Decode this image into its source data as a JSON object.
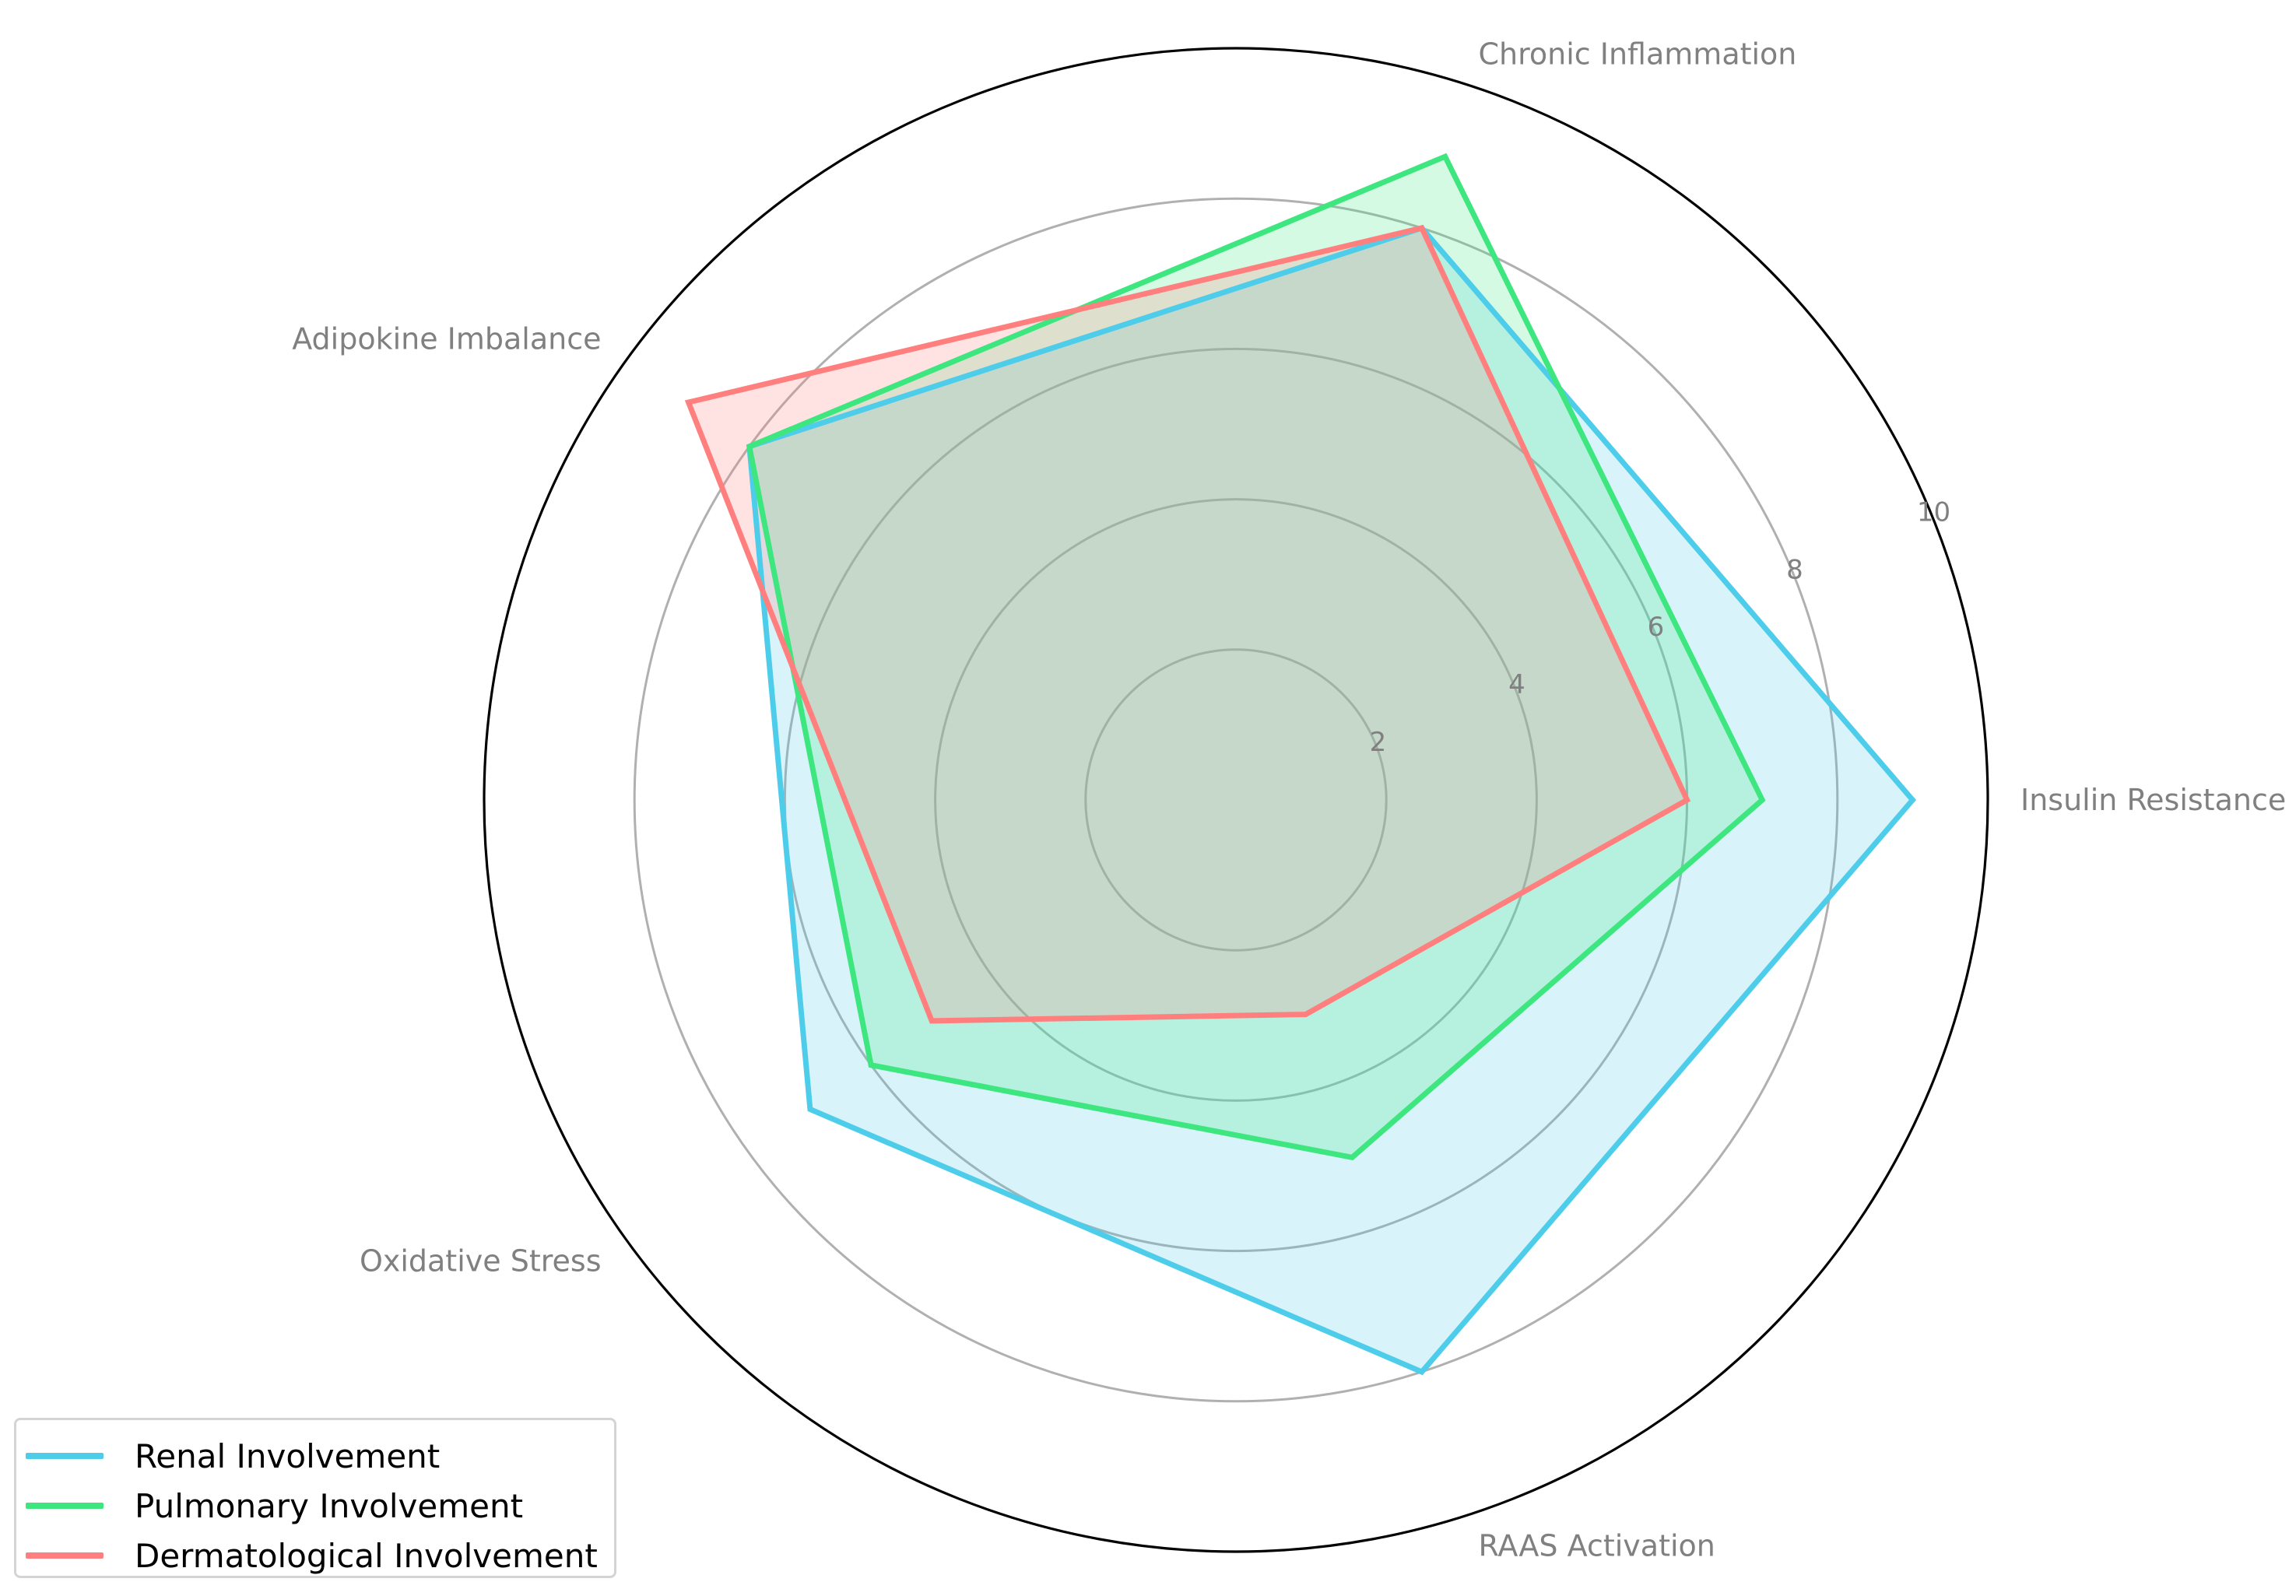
{
  "chart_data": {
    "type": "radar",
    "axes": [
      "Insulin Resistance",
      "Chronic Inflammation",
      "Adipokine Imbalance",
      "Oxidative Stress",
      "RAAS Activation"
    ],
    "rlim": [
      0,
      10
    ],
    "rticks": [
      2,
      4,
      6,
      8,
      10
    ],
    "tick_labels": [
      "2",
      "4",
      "6",
      "8",
      "10"
    ],
    "grid": true,
    "legend_position": "lower-left",
    "series": [
      {
        "name": "Renal Involvement",
        "values": [
          9,
          8,
          8,
          7,
          8
        ],
        "color": "#4ecdea"
      },
      {
        "name": "Pulmonary Involvement",
        "values": [
          7,
          9,
          8,
          6,
          5
        ],
        "color": "#3ee67f"
      },
      {
        "name": "Dermatological Involvement",
        "values": [
          6,
          8,
          9,
          5,
          3
        ],
        "color": "#ff7f7f"
      }
    ]
  }
}
